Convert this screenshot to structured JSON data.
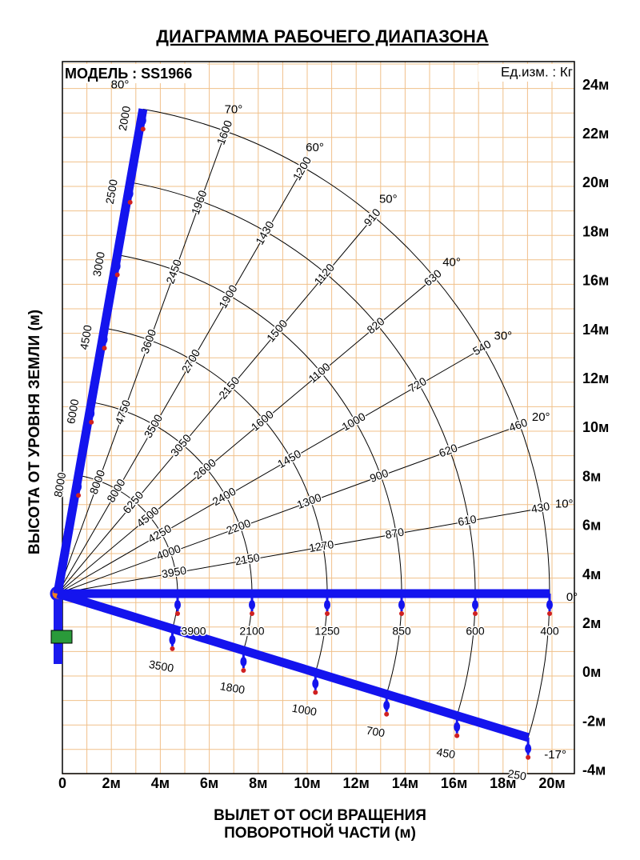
{
  "title": "ДИАГРАММА РАБОЧЕГО ДИАПАЗОНА",
  "model": "МОДЕЛЬ : SS1966",
  "units": "Ед.изм. : Кг",
  "y_axis_title": "ВЫСОТА ОТ УРОВНЯ ЗЕМЛИ (м)",
  "x_axis_title": [
    "ВЫЛЕТ ОТ ОСИ ВРАЩЕНИЯ",
    "ПОВОРОТНОЙ ЧАСТИ (м)"
  ],
  "y_ticks": [
    "24м",
    "22м",
    "20м",
    "18м",
    "16м",
    "14м",
    "12м",
    "10м",
    "8м",
    "6м",
    "4м",
    "2м",
    "0м",
    "-2м",
    "-4м"
  ],
  "x_ticks": [
    "0",
    "2м",
    "4м",
    "6м",
    "8м",
    "10м",
    "12м",
    "14м",
    "16м",
    "18м",
    "20м"
  ],
  "radial_lines": [
    {
      "angle": "70°",
      "loads": [
        8000,
        4750,
        3600,
        2450,
        1960,
        1600
      ]
    },
    {
      "angle": "60°",
      "loads": [
        8000,
        3500,
        2700,
        1900,
        1430,
        1200
      ]
    },
    {
      "angle": "50°",
      "loads": [
        6250,
        3050,
        2150,
        1500,
        1120,
        910
      ]
    },
    {
      "angle": "40°",
      "loads": [
        4500,
        2600,
        1600,
        1100,
        820,
        630
      ]
    },
    {
      "angle": "30°",
      "loads": [
        4250,
        2400,
        1450,
        1000,
        720,
        540
      ]
    },
    {
      "angle": "20°",
      "loads": [
        4000,
        2200,
        1300,
        900,
        620,
        460
      ]
    },
    {
      "angle": "10°",
      "loads": [
        3950,
        2150,
        1270,
        870,
        610,
        430
      ]
    }
  ],
  "booms": [
    {
      "angle": "80°",
      "loads": [
        8000,
        6000,
        4500,
        3000,
        2500,
        2000
      ]
    },
    {
      "angle": "0°",
      "loads": [
        3900,
        2100,
        1250,
        850,
        600,
        400
      ]
    },
    {
      "angle": "-17°",
      "loads": [
        3500,
        1800,
        1000,
        700,
        450,
        250
      ]
    }
  ]
}
